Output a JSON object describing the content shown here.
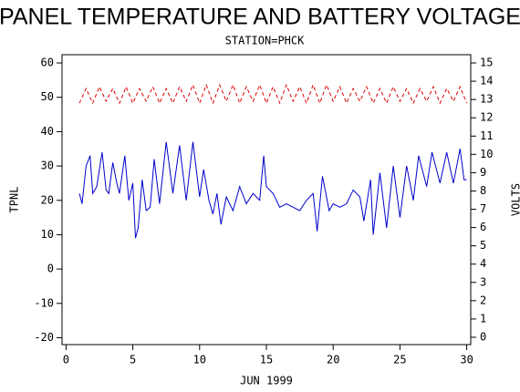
{
  "chart_data": {
    "type": "line",
    "title": "PANEL TEMPERATURE AND BATTERY VOLTAGE",
    "subtitle": "STATION=PHCK",
    "x_label": "JUN 1999",
    "y_label": "TPNL",
    "y2_label": "VOLTS",
    "xlim": [
      -0.3,
      30.3
    ],
    "xticks": [
      0,
      5,
      10,
      15,
      20,
      25,
      30
    ],
    "ylim": [
      -22,
      62.4
    ],
    "yticks": [
      -20,
      -10,
      0,
      10,
      20,
      30,
      40,
      50,
      60
    ],
    "y2lim": [
      -0.4,
      15.45
    ],
    "y2ticks": [
      0,
      1,
      2,
      3,
      4,
      5,
      6,
      7,
      8,
      9,
      10,
      11,
      12,
      13,
      14,
      15
    ],
    "series": [
      {
        "name": "TPNL",
        "color": "#0000cc",
        "dashed": false,
        "x": [
          1,
          1.2,
          1.5,
          1.8,
          2,
          2.3,
          2.7,
          3,
          3.2,
          3.5,
          3.8,
          4,
          4.4,
          4.7,
          5,
          5.2,
          5.4,
          5.7,
          6,
          6.3,
          6.6,
          7,
          7.5,
          8,
          8.5,
          9,
          9.5,
          10,
          10.3,
          10.7,
          11,
          11.3,
          11.6,
          12,
          12.5,
          13,
          13.5,
          14,
          14.5,
          14.8,
          15,
          15.5,
          16,
          16.5,
          17,
          17.5,
          18,
          18.5,
          18.8,
          19.2,
          19.7,
          20,
          20.5,
          21,
          21.5,
          22,
          22.3,
          22.8,
          23,
          23.5,
          24,
          24.5,
          25,
          25.5,
          26,
          26.4,
          27,
          27.4,
          28,
          28.5,
          29,
          29.5,
          29.8,
          30
        ],
        "values": [
          22,
          19,
          30,
          33,
          22,
          24,
          34,
          23,
          22,
          31,
          25,
          22,
          33,
          20,
          25,
          9,
          12,
          26,
          17,
          18,
          32,
          19,
          37,
          22,
          36,
          20,
          37,
          21,
          29,
          20,
          16,
          22,
          13,
          21,
          17,
          24,
          19,
          22,
          20,
          33,
          24,
          22,
          18,
          19,
          18,
          17,
          20,
          22,
          11,
          27,
          17,
          19,
          18,
          19,
          23,
          21,
          14,
          26,
          10,
          28,
          12,
          30,
          15,
          30,
          20,
          33,
          24,
          34,
          25,
          34,
          25,
          35,
          26,
          26
        ]
      },
      {
        "name": "VOLTS",
        "color": "#dd0000",
        "dashed": true,
        "axis": "y2",
        "x": [
          1,
          1.5,
          2,
          2.5,
          3,
          3.5,
          4,
          4.5,
          5,
          5.5,
          6,
          6.5,
          7,
          7.5,
          8,
          8.5,
          9,
          9.5,
          10,
          10.5,
          11,
          11.5,
          12,
          12.5,
          13,
          13.5,
          14,
          14.5,
          15,
          15.5,
          16,
          16.5,
          17,
          17.5,
          18,
          18.5,
          19,
          19.5,
          20,
          20.5,
          21,
          21.5,
          22,
          22.5,
          23,
          23.5,
          24,
          24.5,
          25,
          25.5,
          26,
          26.5,
          27,
          27.5,
          28,
          28.5,
          29,
          29.5,
          30
        ],
        "values": [
          12.8,
          13.6,
          12.8,
          13.7,
          12.9,
          13.6,
          12.8,
          13.7,
          12.8,
          13.6,
          12.9,
          13.7,
          12.8,
          13.6,
          12.8,
          13.7,
          12.9,
          13.8,
          12.8,
          13.8,
          12.8,
          13.8,
          12.9,
          13.8,
          12.8,
          13.7,
          12.9,
          13.8,
          12.8,
          13.7,
          12.8,
          13.8,
          12.9,
          13.7,
          12.8,
          13.8,
          12.8,
          13.8,
          12.9,
          13.7,
          12.8,
          13.6,
          12.9,
          13.7,
          12.8,
          13.6,
          12.8,
          13.7,
          12.9,
          13.6,
          12.8,
          13.6,
          12.9,
          13.7,
          12.8,
          13.6,
          12.9,
          13.7,
          12.8
        ]
      }
    ]
  }
}
